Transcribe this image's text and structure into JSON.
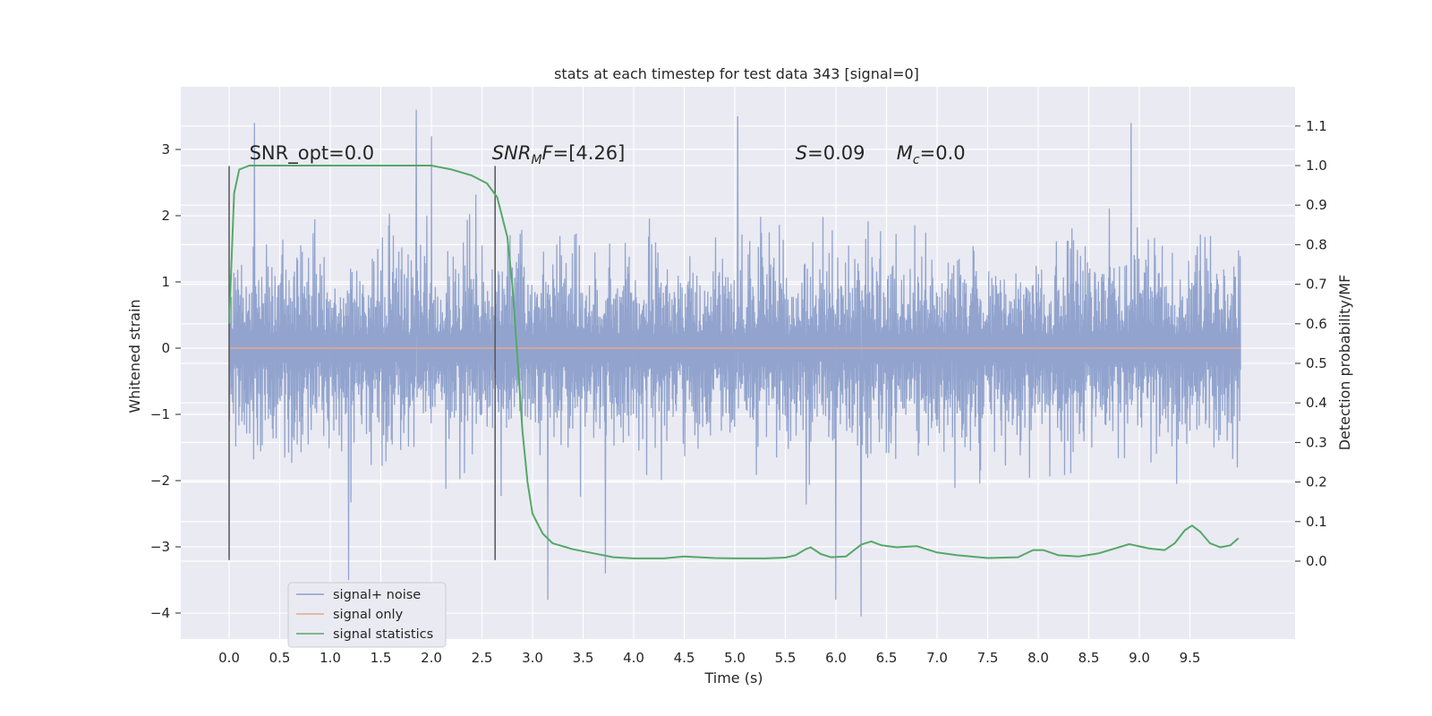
{
  "chart_data": {
    "type": "line",
    "title": "stats at each timestep for test data 343 [signal=0]",
    "xlabel": "Time (s)",
    "ylabel": "Whitened strain",
    "ylabel_right": "Detection probability/MF",
    "xlim": [
      -0.49,
      10.5
    ],
    "ylim": [
      -4.4,
      3.9
    ],
    "ylim_right": [
      -0.2,
      1.2
    ],
    "x_ticks": [
      "0.0",
      "0.5",
      "1.0",
      "1.5",
      "2.0",
      "2.5",
      "3.0",
      "3.5",
      "4.0",
      "4.5",
      "5.0",
      "5.5",
      "6.0",
      "6.5",
      "7.0",
      "7.5",
      "8.0",
      "8.5",
      "9.0",
      "9.5"
    ],
    "y_ticks": [
      "3",
      "2",
      "1",
      "0",
      "−1",
      "−2",
      "−3",
      "−4"
    ],
    "y_right_ticks": [
      "1.1",
      "1.0",
      "0.9",
      "0.8",
      "0.7",
      "0.6",
      "0.5",
      "0.4",
      "0.3",
      "0.2",
      "0.1",
      "0.0"
    ],
    "grid": true,
    "background": "#eaeaf2",
    "annotations": [
      {
        "text": "SNR_opt=0.0",
        "x": 0.2,
        "y": 2.85
      },
      {
        "text": "F=[4.26]",
        "prefix_italic": "SNR",
        "sub": "M",
        "x": 2.6,
        "y": 2.85
      },
      {
        "text": "=0.09",
        "prefix_italic": "S",
        "x": 5.6,
        "y": 2.85
      },
      {
        "text": "=0.0",
        "prefix_italic": "M",
        "sub": "c",
        "x": 6.6,
        "y": 2.85
      }
    ],
    "vertical_markers": [
      {
        "x": 0.0,
        "y_range": [
          -3.2,
          2.75
        ]
      },
      {
        "x": 2.63,
        "y_range": [
          -3.2,
          2.75
        ]
      }
    ],
    "series": [
      {
        "name": "signal+ noise",
        "color": "#8da0cb",
        "axis": "left",
        "description_values": "dense gaussian noise trace, core band approx [-1.5, 1.5], spikes to ~3.6 and ~-4.0",
        "x_start": 0.0,
        "x_end": 10.0,
        "peaks": [
          {
            "x": 0.25,
            "y": 3.4
          },
          {
            "x": 1.85,
            "y": 3.6
          },
          {
            "x": 2.0,
            "y": 3.2
          },
          {
            "x": 5.03,
            "y": 3.5
          },
          {
            "x": 8.92,
            "y": 3.4
          },
          {
            "x": 1.18,
            "y": -3.5
          },
          {
            "x": 3.15,
            "y": -3.8
          },
          {
            "x": 6.25,
            "y": -4.05
          },
          {
            "x": 6.0,
            "y": -3.8
          },
          {
            "x": 3.72,
            "y": -3.4
          }
        ]
      },
      {
        "name": "signal only",
        "color": "#e5a989",
        "axis": "left",
        "x": [
          0.0,
          10.0
        ],
        "values": [
          0.0,
          0.0
        ]
      },
      {
        "name": "signal statistics",
        "color": "#55a868",
        "axis": "right",
        "x": [
          0.0,
          0.05,
          0.1,
          0.2,
          0.4,
          0.8,
          1.2,
          1.6,
          2.0,
          2.2,
          2.4,
          2.55,
          2.65,
          2.75,
          2.8,
          2.85,
          2.9,
          2.95,
          3.0,
          3.1,
          3.2,
          3.4,
          3.6,
          3.8,
          4.0,
          4.3,
          4.5,
          4.8,
          5.0,
          5.3,
          5.5,
          5.6,
          5.7,
          5.75,
          5.85,
          5.95,
          6.1,
          6.25,
          6.35,
          6.45,
          6.6,
          6.8,
          7.0,
          7.2,
          7.5,
          7.8,
          7.95,
          8.05,
          8.2,
          8.4,
          8.6,
          8.9,
          9.1,
          9.25,
          9.35,
          9.45,
          9.52,
          9.6,
          9.7,
          9.8,
          9.9,
          9.98
        ],
        "values": [
          0.6,
          0.93,
          0.99,
          1.0,
          1.0,
          1.0,
          1.0,
          1.0,
          1.0,
          0.99,
          0.975,
          0.955,
          0.92,
          0.82,
          0.7,
          0.52,
          0.33,
          0.2,
          0.12,
          0.07,
          0.045,
          0.03,
          0.02,
          0.01,
          0.007,
          0.007,
          0.012,
          0.008,
          0.007,
          0.007,
          0.009,
          0.015,
          0.03,
          0.035,
          0.018,
          0.01,
          0.012,
          0.042,
          0.05,
          0.04,
          0.035,
          0.038,
          0.022,
          0.015,
          0.008,
          0.01,
          0.028,
          0.028,
          0.015,
          0.012,
          0.02,
          0.043,
          0.032,
          0.028,
          0.045,
          0.078,
          0.09,
          0.075,
          0.045,
          0.035,
          0.04,
          0.058
        ]
      }
    ],
    "legend": {
      "placement": "bottom-left",
      "entries": [
        "signal+ noise",
        "signal only",
        "signal statistics"
      ]
    }
  }
}
